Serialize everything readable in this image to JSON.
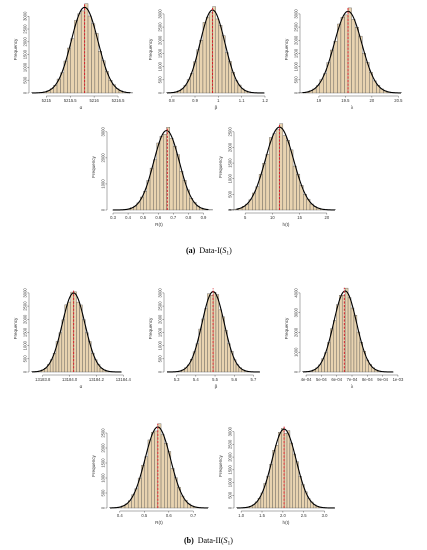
{
  "chart_data": [
    {
      "id": "a1",
      "type": "histogram",
      "xlabel": "α",
      "ylabel": "Frequency",
      "xticks": [
        5215.0,
        5215.5,
        5216.0,
        5216.5
      ],
      "xlim": [
        5214.7,
        5216.75
      ],
      "yticks": [
        0,
        500,
        1000,
        1500,
        2000,
        2500,
        3000
      ],
      "ylim": [
        0,
        3400
      ],
      "mean": 5215.8,
      "sd": 0.28,
      "peak": 3350,
      "bins": 28,
      "true_value": 5215.8
    },
    {
      "id": "a2",
      "type": "histogram",
      "xlabel": "β",
      "ylabel": "Frequency",
      "xticks": [
        0.8,
        0.9,
        1.0,
        1.1,
        1.2
      ],
      "xlim": [
        0.78,
        1.2
      ],
      "yticks": [
        0,
        500,
        1000,
        1500,
        2000,
        2500,
        3000
      ],
      "ylim": [
        0,
        3300
      ],
      "mean": 0.975,
      "sd": 0.053,
      "peak": 3150,
      "bins": 28,
      "true_value": 0.975
    },
    {
      "id": "a3",
      "type": "histogram",
      "xlabel": "λ",
      "ylabel": "Frequency",
      "xticks": [
        19.0,
        19.5,
        20.0,
        20.5
      ],
      "xlim": [
        18.7,
        20.55
      ],
      "yticks": [
        0,
        500,
        1000,
        1500,
        2000,
        2500,
        3000
      ],
      "ylim": [
        0,
        3300
      ],
      "mean": 19.55,
      "sd": 0.26,
      "peak": 3100,
      "bins": 28,
      "true_value": 19.55
    },
    {
      "id": "a4",
      "type": "histogram",
      "xlabel": "R(t)",
      "ylabel": "Frequency",
      "xticks": [
        0.3,
        0.4,
        0.5,
        0.6,
        0.7,
        0.8,
        0.9
      ],
      "xlim": [
        0.28,
        0.93
      ],
      "yticks": [
        0,
        1000,
        2000,
        3000
      ],
      "ylim": [
        0,
        3300
      ],
      "mean": 0.655,
      "sd": 0.085,
      "peak": 3050,
      "bins": 28,
      "true_value": 0.66
    },
    {
      "id": "a5",
      "type": "histogram",
      "xlabel": "h(t)",
      "ylabel": "Frequency",
      "xticks": [
        5,
        10,
        15,
        20
      ],
      "xlim": [
        3.5,
        21.5
      ],
      "yticks": [
        0,
        500,
        1000,
        1500,
        2000,
        2500
      ],
      "ylim": [
        0,
        2750
      ],
      "mean": 11.3,
      "sd": 2.6,
      "peak": 2650,
      "bins": 30,
      "true_value": 11.3
    },
    {
      "id": "b1",
      "type": "histogram",
      "xlabel": "α",
      "ylabel": "Frequency",
      "xticks": [
        "13183.8",
        "13184.0",
        "13184.2",
        "13184.4"
      ],
      "xtick_values": [
        13183.8,
        13184.0,
        13184.2,
        13184.4
      ],
      "xlim": [
        13183.72,
        13184.45
      ],
      "yticks": [
        0,
        500,
        1000,
        1500,
        2000,
        2500,
        3000
      ],
      "ylim": [
        0,
        3300
      ],
      "mean": 13184.03,
      "sd": 0.085,
      "peak": 3000,
      "bins": 28,
      "true_value": 13184.03
    },
    {
      "id": "b2",
      "type": "histogram",
      "xlabel": "β",
      "ylabel": "Frequency",
      "xticks": [
        "5.3",
        "5.4",
        "5.5",
        "5.6",
        "5.7"
      ],
      "xtick_values": [
        5.3,
        5.4,
        5.5,
        5.6,
        5.7
      ],
      "xlim": [
        5.25,
        5.76
      ],
      "yticks": [
        0,
        500,
        1000,
        1500,
        2000,
        2500,
        3000
      ],
      "ylim": [
        0,
        3300
      ],
      "mean": 5.49,
      "sd": 0.058,
      "peak": 3050,
      "bins": 28,
      "true_value": 5.49
    },
    {
      "id": "b3",
      "type": "histogram",
      "xlabel": "λ",
      "ylabel": "Frequency",
      "xticks": [
        "4e-04",
        "5e-04",
        "6e-04",
        "7e-04",
        "8e-04",
        "9e-04",
        "1e-03"
      ],
      "xtick_values": [
        4,
        5,
        6,
        7,
        8,
        9,
        10
      ],
      "xlim": [
        3.8,
        10.2
      ],
      "yticks": [
        0,
        1000,
        2000,
        3000,
        4000
      ],
      "ylim": [
        0,
        4400
      ],
      "mean": 6.55,
      "sd": 0.75,
      "peak": 4100,
      "bins": 28,
      "true_value": 6.5
    },
    {
      "id": "b4",
      "type": "histogram",
      "xlabel": "R(t)",
      "ylabel": "Frequency",
      "xticks": [
        "0.4",
        "0.5",
        "0.6",
        "0.7"
      ],
      "xtick_values": [
        0.4,
        0.5,
        0.6,
        0.7
      ],
      "xlim": [
        0.36,
        0.76
      ],
      "yticks": [
        0,
        500,
        1000,
        1500,
        2000,
        2500
      ],
      "ylim": [
        0,
        2800
      ],
      "mean": 0.555,
      "sd": 0.052,
      "peak": 2700,
      "bins": 28,
      "true_value": 0.555
    },
    {
      "id": "b5",
      "type": "histogram",
      "xlabel": "h(t)",
      "ylabel": "Frequency",
      "xticks": [
        "1.0",
        "1.5",
        "2.0",
        "2.5",
        "3.0"
      ],
      "xtick_values": [
        1.0,
        1.5,
        2.0,
        2.5,
        3.0
      ],
      "xlim": [
        0.9,
        3.25
      ],
      "yticks": [
        0,
        500,
        1000,
        1500,
        2000,
        2500,
        3000
      ],
      "ylim": [
        0,
        3300
      ],
      "mean": 2.03,
      "sd": 0.29,
      "peak": 3100,
      "bins": 30,
      "true_value": 2.03
    }
  ],
  "captions": {
    "a_label": "(a)",
    "a_text": "Data-I(",
    "a_sub": "S",
    "a_subidx": "1",
    "a_close": ")",
    "b_label": "(b)",
    "b_text": "Data-II(",
    "b_sub": "S",
    "b_subidx": "1",
    "b_close": ")"
  },
  "colors": {
    "bar_fill": "#e8d3b0",
    "bar_stroke": "#4a4a4a",
    "density": "#000000",
    "true_line": "#d4202a",
    "axis": "#333333"
  }
}
